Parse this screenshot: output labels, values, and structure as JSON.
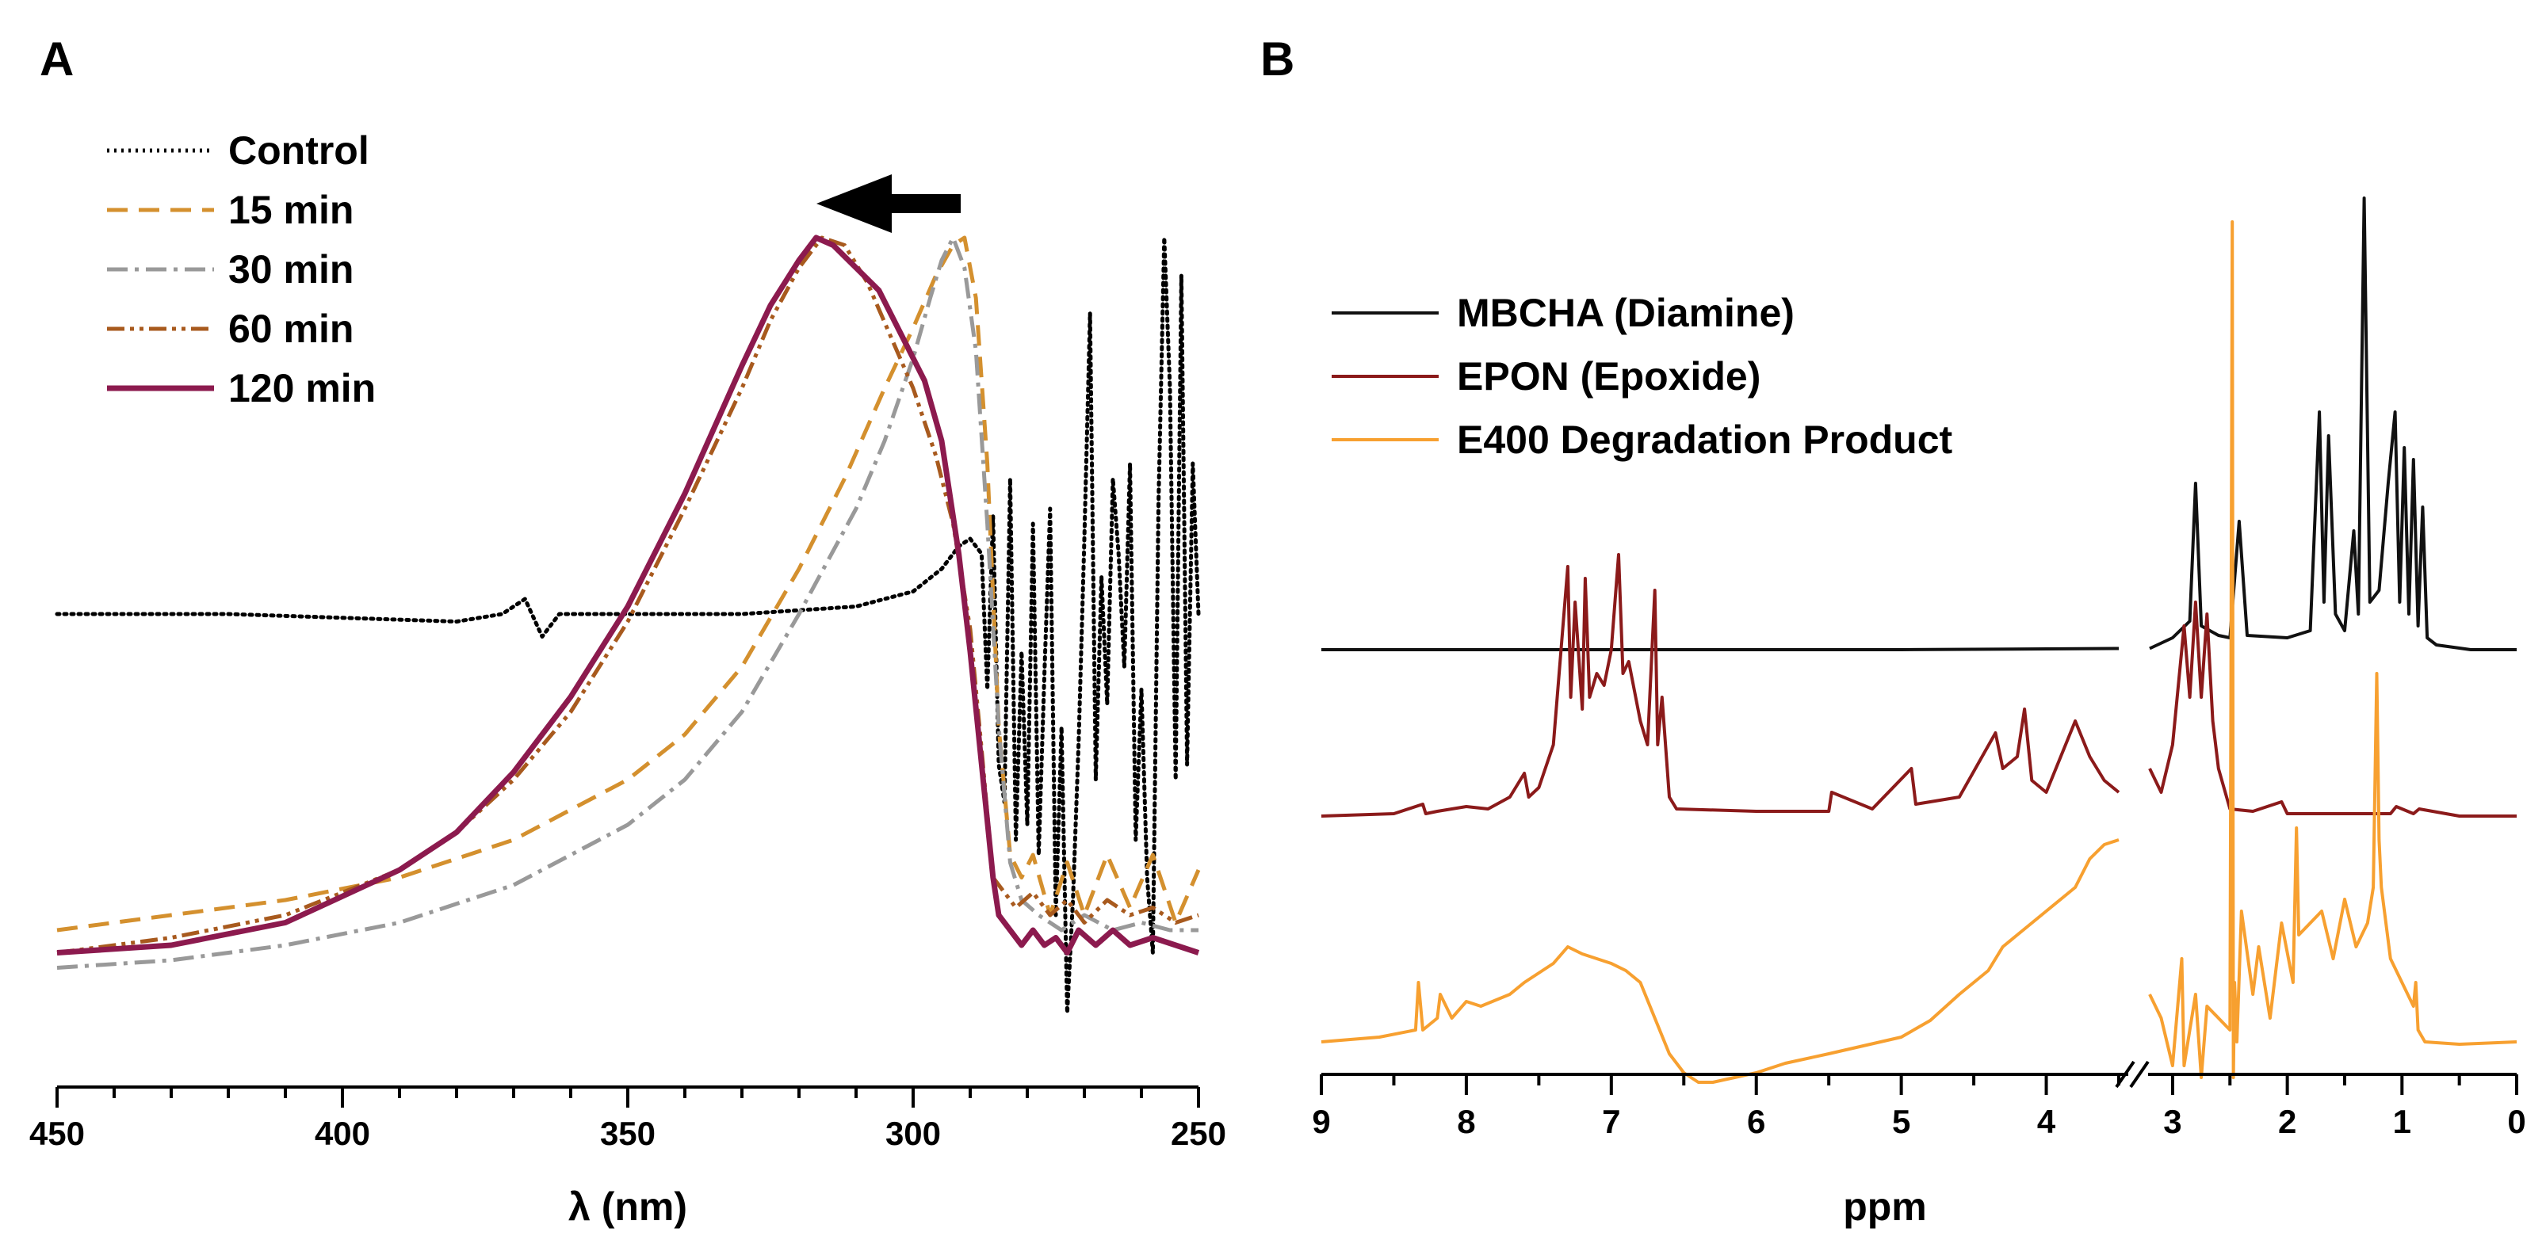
{
  "chart_data": [
    {
      "panel": "A",
      "type": "line",
      "xlabel": "λ (nm)",
      "xlim": [
        450,
        250
      ],
      "x_reversed": true,
      "x_ticks": [
        450,
        400,
        350,
        300,
        250
      ],
      "y_axis_visible": false,
      "annotation": "arrow pointing toward longer wavelength (left)",
      "series": [
        {
          "name": "Control",
          "style": "dotted",
          "color": "#000000",
          "x": [
            450,
            420,
            380,
            372,
            368,
            365,
            362,
            350,
            330,
            310,
            300,
            295,
            292,
            290,
            288,
            287,
            286,
            285,
            284,
            283,
            282,
            281,
            280,
            279,
            278,
            277,
            276,
            275,
            274,
            273,
            272,
            271,
            270,
            269,
            268,
            267,
            266,
            265,
            264,
            263,
            262,
            261,
            260,
            259,
            258,
            257,
            256,
            255,
            254,
            253,
            252,
            251,
            250
          ],
          "y": [
            0.5,
            0.5,
            0.49,
            0.5,
            0.52,
            0.47,
            0.5,
            0.5,
            0.5,
            0.51,
            0.53,
            0.56,
            0.59,
            0.6,
            0.58,
            0.4,
            0.63,
            0.3,
            0.25,
            0.68,
            0.2,
            0.45,
            0.22,
            0.62,
            0.18,
            0.42,
            0.64,
            0.1,
            0.35,
            -0.03,
            0.12,
            0.33,
            0.6,
            0.9,
            0.28,
            0.55,
            0.38,
            0.68,
            0.58,
            0.43,
            0.7,
            0.2,
            0.4,
            0.15,
            0.05,
            0.65,
            1.0,
            0.8,
            0.28,
            0.95,
            0.3,
            0.7,
            0.5
          ]
        },
        {
          "name": "15 min",
          "style": "dashed",
          "color": "#d4902e",
          "x": [
            450,
            430,
            410,
            390,
            370,
            350,
            340,
            330,
            320,
            312,
            305,
            300,
            296,
            293,
            291,
            289,
            287,
            285,
            283,
            281,
            279,
            276,
            273,
            270,
            266,
            262,
            258,
            254,
            250
          ],
          "y": [
            0.08,
            0.1,
            0.12,
            0.15,
            0.2,
            0.28,
            0.34,
            0.43,
            0.56,
            0.68,
            0.8,
            0.88,
            0.95,
            0.99,
            1.0,
            0.92,
            0.7,
            0.35,
            0.18,
            0.15,
            0.18,
            0.1,
            0.17,
            0.1,
            0.18,
            0.11,
            0.18,
            0.09,
            0.16
          ]
        },
        {
          "name": "30 min",
          "style": "dashdot",
          "color": "#999999",
          "x": [
            450,
            430,
            410,
            390,
            370,
            350,
            340,
            330,
            320,
            310,
            305,
            300,
            297,
            295,
            293,
            291,
            289,
            287,
            285,
            283,
            281,
            278,
            274,
            270,
            265,
            260,
            255,
            250
          ],
          "y": [
            0.03,
            0.04,
            0.06,
            0.09,
            0.14,
            0.22,
            0.28,
            0.37,
            0.5,
            0.64,
            0.73,
            0.84,
            0.92,
            0.97,
            1.0,
            0.96,
            0.85,
            0.62,
            0.35,
            0.17,
            0.12,
            0.1,
            0.08,
            0.1,
            0.08,
            0.09,
            0.08,
            0.08
          ]
        },
        {
          "name": "60 min",
          "style": "dashdotdot",
          "color": "#a85a1e",
          "x": [
            450,
            430,
            410,
            390,
            380,
            370,
            360,
            350,
            340,
            330,
            325,
            320,
            316,
            312,
            308,
            304,
            300,
            296,
            293,
            290,
            288,
            286,
            284,
            282,
            279,
            276,
            273,
            270,
            266,
            262,
            258,
            254,
            250
          ],
          "y": [
            0.05,
            0.07,
            0.1,
            0.16,
            0.21,
            0.28,
            0.37,
            0.49,
            0.64,
            0.8,
            0.89,
            0.96,
            1.0,
            0.99,
            0.94,
            0.87,
            0.8,
            0.71,
            0.62,
            0.48,
            0.32,
            0.15,
            0.13,
            0.11,
            0.13,
            0.1,
            0.12,
            0.09,
            0.12,
            0.1,
            0.11,
            0.09,
            0.1
          ]
        },
        {
          "name": "120 min",
          "style": "solid",
          "color": "#8c1a4e",
          "x": [
            450,
            430,
            410,
            390,
            380,
            370,
            360,
            350,
            340,
            330,
            325,
            320,
            317,
            314,
            310,
            306,
            302,
            298,
            295,
            292,
            290,
            288,
            286,
            285,
            283,
            281,
            279,
            277,
            275,
            273,
            271,
            268,
            265,
            262,
            258,
            254,
            250
          ],
          "y": [
            0.05,
            0.06,
            0.09,
            0.16,
            0.21,
            0.29,
            0.39,
            0.51,
            0.66,
            0.83,
            0.91,
            0.97,
            1.0,
            0.99,
            0.96,
            0.93,
            0.87,
            0.81,
            0.73,
            0.58,
            0.45,
            0.3,
            0.15,
            0.1,
            0.08,
            0.06,
            0.08,
            0.06,
            0.07,
            0.05,
            0.08,
            0.06,
            0.08,
            0.06,
            0.07,
            0.06,
            0.05
          ]
        }
      ]
    },
    {
      "panel": "B",
      "type": "line",
      "xlabel": "ppm",
      "x_reversed": true,
      "x_axis_break": [
        3.5,
        3.2
      ],
      "x_ticks": [
        9,
        8,
        7,
        6,
        5,
        4,
        3,
        2,
        1,
        0
      ],
      "y_axis_visible": false,
      "series": [
        {
          "name": "MBCHA (Diamine)",
          "color": "#111111",
          "baseline": 0.7,
          "x": [
            9.0,
            5.0,
            3.5,
            3.2,
            3.0,
            2.85,
            2.8,
            2.75,
            2.6,
            2.5,
            2.42,
            2.35,
            2.0,
            1.8,
            1.72,
            1.68,
            1.64,
            1.58,
            1.5,
            1.42,
            1.38,
            1.33,
            1.28,
            1.2,
            1.12,
            1.06,
            1.02,
            0.98,
            0.94,
            0.9,
            0.86,
            0.82,
            0.78,
            0.7,
            0.4,
            0.0
          ],
          "y": [
            0.7,
            0.7,
            0.705,
            0.705,
            0.75,
            0.82,
            1.4,
            0.8,
            0.76,
            0.75,
            1.24,
            0.76,
            0.75,
            0.78,
            1.7,
            0.9,
            1.6,
            0.85,
            0.78,
            1.2,
            0.85,
            2.6,
            0.9,
            0.95,
            1.4,
            1.7,
            0.9,
            1.55,
            0.85,
            1.5,
            0.8,
            1.3,
            0.75,
            0.72,
            0.7,
            0.7
          ]
        },
        {
          "name": "EPON (Epoxide)",
          "color": "#8b1a1a",
          "baseline": 0.0,
          "x": [
            9.0,
            8.5,
            8.3,
            8.28,
            8.2,
            8.0,
            7.85,
            7.7,
            7.6,
            7.57,
            7.5,
            7.4,
            7.3,
            7.28,
            7.25,
            7.2,
            7.18,
            7.15,
            7.1,
            7.05,
            7.0,
            6.95,
            6.92,
            6.88,
            6.8,
            6.75,
            6.7,
            6.68,
            6.65,
            6.6,
            6.55,
            6.0,
            5.5,
            5.48,
            5.2,
            4.93,
            4.9,
            4.6,
            4.35,
            4.3,
            4.2,
            4.15,
            4.1,
            4.0,
            3.8,
            3.7,
            3.6,
            3.5,
            3.2,
            3.1,
            3.0,
            2.9,
            2.85,
            2.8,
            2.75,
            2.7,
            2.65,
            2.6,
            2.5,
            2.3,
            2.05,
            2.0,
            1.5,
            1.1,
            1.05,
            0.9,
            0.85,
            0.5,
            0.0
          ],
          "y": [
            0.0,
            0.01,
            0.05,
            0.01,
            0.02,
            0.04,
            0.03,
            0.08,
            0.18,
            0.08,
            0.12,
            0.3,
            1.05,
            0.5,
            0.9,
            0.45,
            1.0,
            0.5,
            0.6,
            0.55,
            0.7,
            1.1,
            0.6,
            0.65,
            0.4,
            0.3,
            0.95,
            0.3,
            0.5,
            0.08,
            0.03,
            0.02,
            0.02,
            0.1,
            0.03,
            0.2,
            0.05,
            0.08,
            0.35,
            0.2,
            0.25,
            0.45,
            0.15,
            0.1,
            0.4,
            0.25,
            0.15,
            0.1,
            0.2,
            0.1,
            0.3,
            0.8,
            0.5,
            0.9,
            0.5,
            0.85,
            0.4,
            0.2,
            0.03,
            0.02,
            0.06,
            0.01,
            0.01,
            0.01,
            0.04,
            0.01,
            0.03,
            0.0,
            0.0
          ]
        },
        {
          "name": "E400 Degradation Product",
          "color": "#f7a030",
          "baseline": -0.95,
          "x": [
            9.0,
            8.6,
            8.35,
            8.33,
            8.3,
            8.2,
            8.18,
            8.1,
            8.0,
            7.9,
            7.7,
            7.6,
            7.4,
            7.3,
            7.2,
            7.0,
            6.9,
            6.8,
            6.7,
            6.6,
            6.5,
            6.4,
            6.3,
            6.0,
            5.8,
            5.5,
            5.0,
            4.8,
            4.6,
            4.4,
            4.3,
            4.0,
            3.8,
            3.7,
            3.6,
            3.5,
            3.2,
            3.1,
            3.0,
            2.92,
            2.9,
            2.85,
            2.8,
            2.75,
            2.7,
            2.5,
            2.48,
            2.47,
            2.46,
            2.44,
            2.4,
            2.3,
            2.25,
            2.15,
            2.05,
            1.95,
            1.92,
            1.9,
            1.8,
            1.7,
            1.6,
            1.5,
            1.4,
            1.3,
            1.25,
            1.22,
            1.2,
            1.18,
            1.1,
            1.0,
            0.9,
            0.88,
            0.86,
            0.8,
            0.5,
            0.0
          ],
          "y": [
            -0.95,
            -0.93,
            -0.9,
            -0.7,
            -0.9,
            -0.85,
            -0.75,
            -0.85,
            -0.78,
            -0.8,
            -0.75,
            -0.7,
            -0.62,
            -0.55,
            -0.58,
            -0.62,
            -0.65,
            -0.7,
            -0.85,
            -1.0,
            -1.08,
            -1.12,
            -1.12,
            -1.08,
            -1.04,
            -1.0,
            -0.93,
            -0.86,
            -0.75,
            -0.65,
            -0.55,
            -0.4,
            -0.3,
            -0.18,
            -0.12,
            -0.1,
            -0.75,
            -0.85,
            -1.05,
            -0.6,
            -1.05,
            -0.9,
            -0.75,
            -1.1,
            -0.8,
            -0.9,
            2.5,
            -1.1,
            -0.7,
            -0.95,
            -0.4,
            -0.75,
            -0.55,
            -0.85,
            -0.45,
            -0.7,
            -0.05,
            -0.5,
            -0.45,
            -0.4,
            -0.6,
            -0.35,
            -0.55,
            -0.45,
            -0.3,
            0.6,
            -0.1,
            -0.3,
            -0.6,
            -0.7,
            -0.8,
            -0.7,
            -0.9,
            -0.95,
            -0.96,
            -0.95
          ]
        }
      ]
    }
  ],
  "legend_a": {
    "items": [
      {
        "label": "Control",
        "color": "#000000",
        "dash": "3,6",
        "width": 5
      },
      {
        "label": "15 min",
        "color": "#d4902e",
        "dash": "26,14",
        "width": 5
      },
      {
        "label": "30 min",
        "color": "#999999",
        "dash": "26,9,5,9",
        "width": 5
      },
      {
        "label": "60 min",
        "color": "#a85a1e",
        "dash": "22,7,5,7,5,7",
        "width": 5
      },
      {
        "label": "120 min",
        "color": "#8c1a4e",
        "dash": "",
        "width": 7
      }
    ]
  },
  "legend_b": {
    "items": [
      {
        "label": "MBCHA (Diamine)",
        "color": "#111111"
      },
      {
        "label": "EPON (Epoxide)",
        "color": "#8b1a1a"
      },
      {
        "label": "E400 Degradation Product",
        "color": "#f7a030"
      }
    ]
  },
  "labels": {
    "panel_a": "A",
    "panel_b": "B",
    "xlabel_a": "λ (nm)",
    "xlabel_b": "ppm"
  }
}
